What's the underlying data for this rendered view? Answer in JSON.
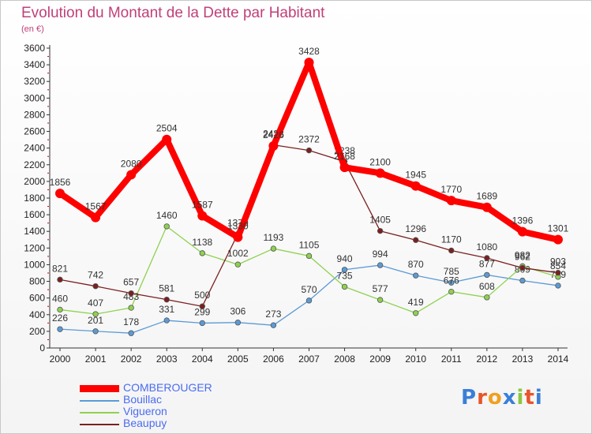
{
  "chart_data": {
    "type": "line",
    "title": "Evolution du Montant de la Dette par Habitant",
    "subtitle": "(en €)",
    "x": [
      "2000",
      "2001",
      "2002",
      "2003",
      "2004",
      "2005",
      "2006",
      "2007",
      "2008",
      "2009",
      "2010",
      "2011",
      "2012",
      "2013",
      "2014"
    ],
    "ylim": [
      0,
      3600
    ],
    "yticks": [
      0,
      200,
      400,
      600,
      800,
      1000,
      1200,
      1400,
      1600,
      1800,
      2000,
      2200,
      2400,
      2600,
      2800,
      3000,
      3200,
      3400,
      3600
    ],
    "grid": false,
    "legend_position": "bottom-left",
    "series": [
      {
        "name": "COMBEROUGER",
        "color": "#ff0000",
        "values": [
          1856,
          1567,
          2080,
          2504,
          1587,
          1330,
          2426,
          3428,
          2168,
          2100,
          1945,
          1770,
          1689,
          1396,
          1301
        ]
      },
      {
        "name": "Bouillac",
        "color": "#5b9bd5",
        "values": [
          226,
          201,
          178,
          331,
          299,
          306,
          273,
          570,
          940,
          994,
          870,
          785,
          877,
          809,
          749
        ]
      },
      {
        "name": "Vigueron",
        "color": "#8fd14f",
        "values": [
          460,
          407,
          483,
          1460,
          1138,
          1002,
          1193,
          1105,
          735,
          577,
          419,
          676,
          608,
          982,
          854
        ]
      },
      {
        "name": "Beaupuy",
        "color": "#7b1f1f",
        "values": [
          821,
          742,
          657,
          581,
          500,
          1370,
          2438,
          2372,
          2238,
          1405,
          1296,
          1170,
          1080,
          962,
          903
        ]
      }
    ]
  },
  "legend": {
    "items": [
      {
        "label": "COMBEROUGER",
        "color": "#ff0000",
        "text_color": "#4a6cf0"
      },
      {
        "label": "Bouillac",
        "color": "#5b9bd5",
        "text_color": "#4a6cf0"
      },
      {
        "label": "Vigueron",
        "color": "#8fd14f",
        "text_color": "#4a6cf0"
      },
      {
        "label": "Beaupuy",
        "color": "#7b1f1f",
        "text_color": "#4a6cf0"
      }
    ]
  },
  "logo": {
    "text": "Proxiti"
  }
}
